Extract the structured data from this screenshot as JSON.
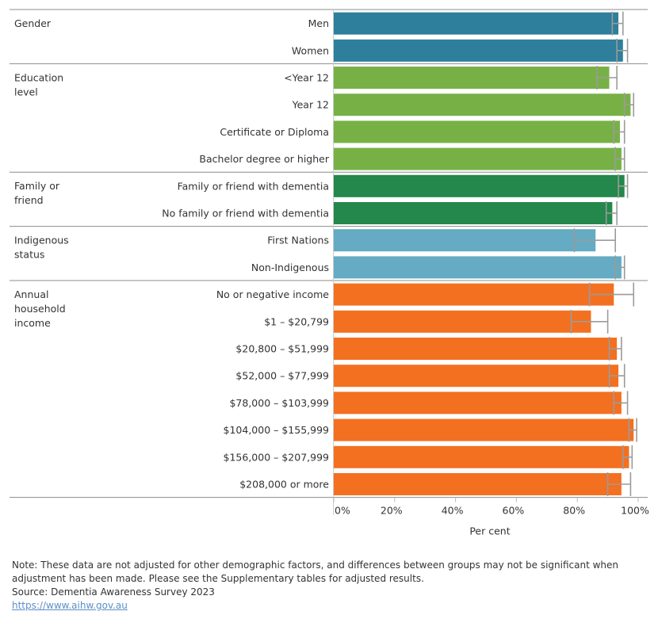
{
  "chart_data": {
    "type": "bar",
    "orientation": "horizontal",
    "xlabel": "Per cent",
    "xlim": [
      0,
      100
    ],
    "x_ticks": [
      "0%",
      "20%",
      "40%",
      "60%",
      "80%",
      "100%"
    ],
    "x_tick_values": [
      0,
      20,
      40,
      60,
      80,
      100
    ],
    "error_bars": true,
    "colors": {
      "Gender": "#2e7f9b",
      "Education level": "#77b146",
      "Family or friend": "#24874b",
      "Indigenous status": "#64abc3",
      "Annual household income": "#f37021",
      "error_bar": "#9b9b9b",
      "divider": "#8c8c8c"
    },
    "groups": [
      {
        "name": "Gender",
        "label_lines": [
          "Gender"
        ],
        "items": [
          {
            "label": "Men",
            "value": 93.5,
            "low": 91.5,
            "high": 95.0
          },
          {
            "label": "Women",
            "value": 95.0,
            "low": 93.0,
            "high": 96.5
          }
        ]
      },
      {
        "name": "Education level",
        "label_lines": [
          "Education",
          "level"
        ],
        "items": [
          {
            "label": "<Year 12",
            "value": 90.5,
            "low": 86.5,
            "high": 93.0
          },
          {
            "label": "Year 12",
            "value": 97.5,
            "low": 95.5,
            "high": 98.5
          },
          {
            "label": "Certificate or Diploma",
            "value": 94.0,
            "low": 92.0,
            "high": 95.5
          },
          {
            "label": "Bachelor degree or higher",
            "value": 94.5,
            "low": 92.5,
            "high": 95.5
          }
        ]
      },
      {
        "name": "Family or friend",
        "label_lines": [
          "Family or",
          "friend"
        ],
        "items": [
          {
            "label": "Family or friend with dementia",
            "value": 95.5,
            "low": 93.5,
            "high": 96.5
          },
          {
            "label": "No family or friend with dementia",
            "value": 91.5,
            "low": 89.5,
            "high": 93.0
          }
        ]
      },
      {
        "name": "Indigenous status",
        "label_lines": [
          "Indigenous",
          "status"
        ],
        "items": [
          {
            "label": "First Nations",
            "value": 86.0,
            "low": 79.0,
            "high": 92.5
          },
          {
            "label": "Non-Indigenous",
            "value": 94.5,
            "low": 92.5,
            "high": 95.5
          }
        ]
      },
      {
        "name": "Annual household income",
        "label_lines": [
          "Annual",
          "household",
          "income"
        ],
        "items": [
          {
            "label": "No or negative income",
            "value": 92.0,
            "low": 84.0,
            "high": 98.5
          },
          {
            "label": "$1 – $20,799",
            "value": 84.5,
            "low": 78.0,
            "high": 90.0
          },
          {
            "label": "$20,800 – $51,999",
            "value": 93.0,
            "low": 90.5,
            "high": 94.5
          },
          {
            "label": "$52,000 – $77,999",
            "value": 93.5,
            "low": 90.5,
            "high": 95.5
          },
          {
            "label": "$78,000 – $103,999",
            "value": 94.5,
            "low": 92.0,
            "high": 96.5
          },
          {
            "label": "$104,000 – $155,999",
            "value": 98.5,
            "low": 97.0,
            "high": 99.5
          },
          {
            "label": "$156,000 – $207,999",
            "value": 97.0,
            "low": 95.0,
            "high": 98.0
          },
          {
            "label": "$208,000 or more",
            "value": 94.5,
            "low": 90.0,
            "high": 97.5
          }
        ]
      }
    ]
  },
  "notes": {
    "note": "Note: These data are not adjusted for other demographic factors, and differences between groups may not be significant when adjustment has been made. Please see the Supplementary tables for adjusted results.",
    "source": "Source: Dementia Awareness Survey 2023",
    "link": "https://www.aihw.gov.au"
  }
}
